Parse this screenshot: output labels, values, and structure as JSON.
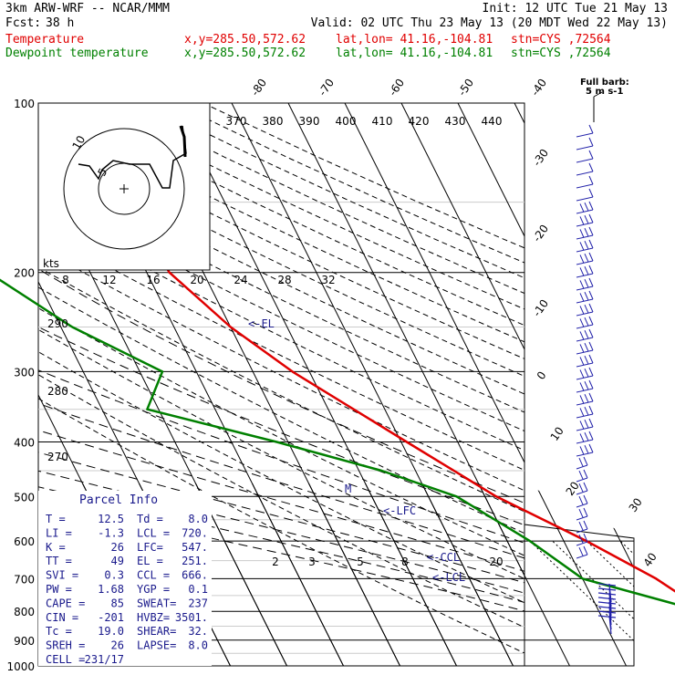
{
  "header": {
    "model": "3km ARW-WRF -- NCAR/MMM",
    "init": "Init: 12 UTC Tue 21 May 13",
    "fcst_label": "Fcst:",
    "fcst_value": "38 h",
    "valid": "Valid: 02 UTC Thu 23 May 13 (20 MDT Wed 22 May 13)",
    "temp_line": {
      "name": "Temperature",
      "xy": "x,y=285.50,572.62",
      "latlon": "lat,lon= 41.16,-104.81",
      "stn": "stn=CYS ,72564"
    },
    "dew_line": {
      "name": "Dewpoint temperature",
      "xy": "x,y=285.50,572.62",
      "latlon": "lat,lon= 41.16,-104.81",
      "stn": "stn=CYS ,72564"
    }
  },
  "barb_legend": {
    "title": "Full barb:",
    "value": "5 m s-1"
  },
  "colors": {
    "temperature": "#e00000",
    "dewpoint": "#008000",
    "panel_text": "#1a1a8c"
  },
  "chart_data": {
    "type": "line",
    "pressure_levels": [
      "100",
      "200",
      "300",
      "400",
      "500",
      "600",
      "700",
      "800",
      "900",
      "1000"
    ],
    "skew_temp_labels": [
      "-80",
      "-70",
      "-60",
      "-50",
      "-40",
      "-30",
      "-20",
      "-10",
      "0",
      "10",
      "20",
      "30",
      "40"
    ],
    "theta_labels": [
      "370",
      "380",
      "390",
      "400",
      "410",
      "420",
      "430",
      "440"
    ],
    "theta_lower_labels": [
      "290",
      "280",
      "270"
    ],
    "mixing_ratio_labels": [
      "2",
      "3",
      "5",
      "8",
      "20"
    ],
    "hodograph": {
      "speed_label": "kts",
      "speed_ticks": [
        "8",
        "12",
        "16",
        "20",
        "24",
        "28",
        "32"
      ],
      "ring_labels": [
        "5",
        "10"
      ]
    },
    "annotations": [
      "<-EL",
      "<-LFC",
      "<-CCL",
      "<-LCL",
      "M"
    ],
    "series": [
      {
        "name": "Temperature",
        "points": [
          [
            100,
            -57
          ],
          [
            150,
            -57
          ],
          [
            200,
            -56
          ],
          [
            250,
            -50
          ],
          [
            300,
            -43
          ],
          [
            400,
            -29
          ],
          [
            500,
            -18
          ],
          [
            600,
            -6
          ],
          [
            700,
            3
          ],
          [
            750,
            6
          ],
          [
            800,
            12.5
          ]
        ]
      },
      {
        "name": "Dewpoint temperature",
        "points": [
          [
            100,
            -92
          ],
          [
            150,
            -92
          ],
          [
            200,
            -88
          ],
          [
            250,
            -78
          ],
          [
            300,
            -66
          ],
          [
            350,
            -72
          ],
          [
            400,
            -52
          ],
          [
            450,
            -36
          ],
          [
            500,
            -25
          ],
          [
            600,
            -16
          ],
          [
            700,
            -10
          ],
          [
            770,
            3
          ],
          [
            800,
            8
          ]
        ]
      }
    ]
  },
  "parcel_info": {
    "title": "Parcel Info",
    "rows": [
      [
        "T  =",
        "12.5",
        "Td =",
        "8.0"
      ],
      [
        "LI =",
        "-1.3",
        "LCL =",
        "720."
      ],
      [
        "K  =",
        "26",
        "LFC=",
        "547."
      ],
      [
        "TT =",
        "49",
        "EL =",
        "251."
      ],
      [
        "SVI =",
        "0.3",
        "CCL =",
        "666."
      ],
      [
        "PW =",
        "1.68",
        "YGP =",
        "0.1"
      ],
      [
        "CAPE =",
        "85",
        "SWEAT=",
        "237"
      ],
      [
        "CIN =",
        "-201",
        "HVBZ=",
        "3501."
      ],
      [
        "Tc =",
        "19.0",
        "SHEAR=",
        "32."
      ],
      [
        "SREH =",
        "26",
        "LAPSE=",
        "8.0"
      ],
      [
        "CELL =",
        "231/17",
        "",
        ""
      ]
    ]
  }
}
